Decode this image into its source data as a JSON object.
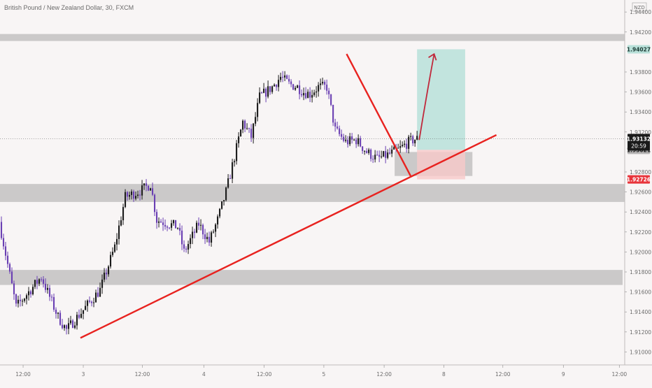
{
  "chart_data": {
    "type": "candlestick",
    "title": "British Pound / New Zealand Dollar, 30, FXCM",
    "currency": "NZD",
    "ylim": [
      1.9087,
      1.9452
    ],
    "y_ticks": [
      "1.94400",
      "1.94200",
      "1.93800",
      "1.93600",
      "1.93400",
      "1.93200",
      "1.92800",
      "1.92600",
      "1.92400",
      "1.92200",
      "1.92000",
      "1.91800",
      "1.91600",
      "1.91400",
      "1.91200",
      "1.91000"
    ],
    "x_ticks": [
      "12:00",
      "3",
      "12:00",
      "4",
      "12:00",
      "5",
      "12:00",
      "8",
      "12:00",
      "9",
      "12:00"
    ],
    "price_labels": {
      "target": "1.94027",
      "last": "1.93132",
      "countdown": "20:59",
      "entry": "1.93021",
      "stop": "1.92726"
    },
    "zones": [
      {
        "low": 1.9411,
        "high": 1.9418
      },
      {
        "low": 1.925,
        "high": 1.9268
      },
      {
        "low": 1.9167,
        "high": 1.9182
      },
      {
        "low": 1.9276,
        "high": 1.93
      }
    ],
    "trendlines": [
      {
        "from": [
          0.0,
          1.9114
        ],
        "to": [
          0.7946,
          1.9317
        ]
      },
      {
        "from": [
          0.5548,
          1.9398
        ],
        "to": [
          0.6573,
          1.9276
        ]
      }
    ],
    "position": {
      "entry": 1.93021,
      "stop": 1.92726,
      "target": 1.94027,
      "x_start": 0.6676,
      "x_end": 0.7446
    },
    "arrow": {
      "from": [
        0.671,
        1.9312
      ],
      "to": [
        0.6949,
        1.9398
      ]
    },
    "candles": {
      "count": 225,
      "anchors": [
        [
          0,
          1.923
        ],
        [
          8,
          1.9145
        ],
        [
          20,
          1.9175
        ],
        [
          28,
          1.9135
        ],
        [
          32,
          1.9122
        ],
        [
          48,
          1.9162
        ],
        [
          55,
          1.9205
        ],
        [
          60,
          1.9255
        ],
        [
          68,
          1.9262
        ],
        [
          72,
          1.9268
        ],
        [
          75,
          1.9232
        ],
        [
          85,
          1.9225
        ],
        [
          88,
          1.92
        ],
        [
          95,
          1.9228
        ],
        [
          100,
          1.921
        ],
        [
          104,
          1.9232
        ],
        [
          108,
          1.926
        ],
        [
          112,
          1.9295
        ],
        [
          116,
          1.933
        ],
        [
          120,
          1.9315
        ],
        [
          124,
          1.9355
        ],
        [
          130,
          1.9365
        ],
        [
          134,
          1.9375
        ],
        [
          138,
          1.9368
        ],
        [
          142,
          1.9365
        ],
        [
          145,
          1.936
        ],
        [
          148,
          1.9358
        ],
        [
          152,
          1.9365
        ],
        [
          156,
          1.9365
        ],
        [
          160,
          1.9322
        ],
        [
          165,
          1.931
        ],
        [
          170,
          1.9312
        ],
        [
          175,
          1.93
        ],
        [
          180,
          1.9293
        ],
        [
          185,
          1.9297
        ],
        [
          190,
          1.9302
        ],
        [
          195,
          1.931
        ],
        [
          198,
          1.9313
        ]
      ]
    }
  },
  "colors": {
    "bull": "#1a1a1a",
    "bear": "#6a3fb3",
    "trendline": "#e8221f",
    "zone": "#c8c6c6",
    "profit": "#b9e0d9",
    "loss": "#f7c9c9",
    "arrow": "#c0283b",
    "axis_text": "#6b6b6b"
  }
}
